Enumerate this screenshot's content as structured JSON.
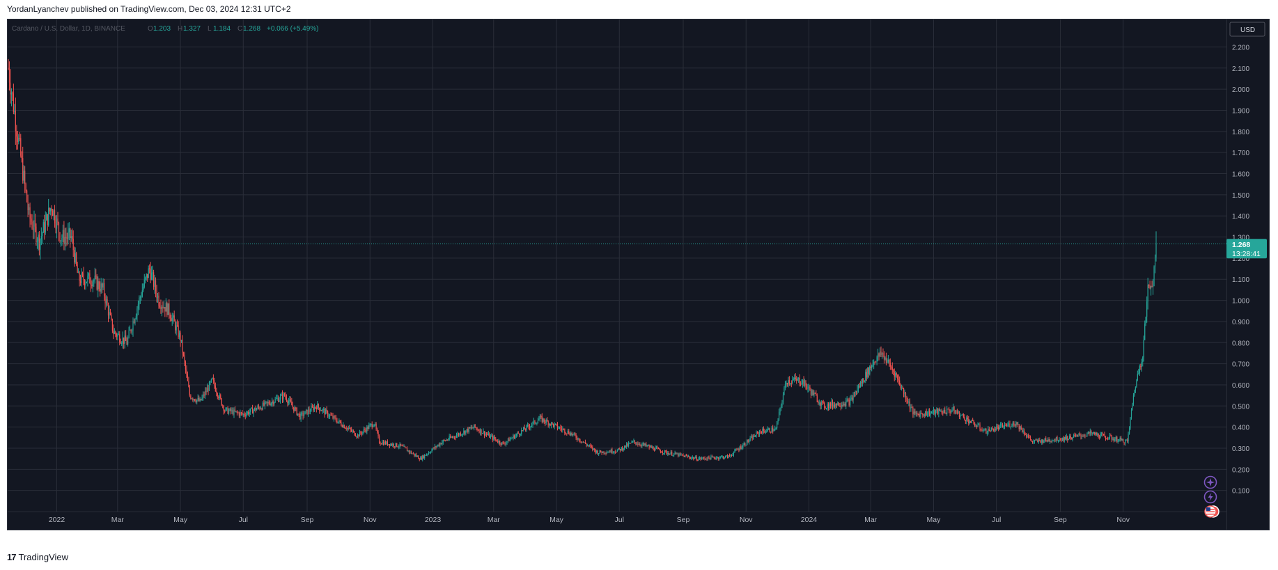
{
  "header": {
    "publish_text": "YordanLyanchev published on TradingView.com, Dec 03, 2024 12:31 UTC+2"
  },
  "legend": {
    "symbol": "Cardano / U.S. Dollar, 1D, BINANCE",
    "o_label": "O",
    "o_value": "1.203",
    "h_label": "H",
    "h_value": "1.327",
    "l_label": "L",
    "l_value": "1.184",
    "c_label": "C",
    "c_value": "1.268",
    "change": "+0.066 (+5.49%)"
  },
  "price_axis": {
    "currency": "USD",
    "last_price": "1.268",
    "countdown": "13:28:41"
  },
  "footer": {
    "brand": "TradingView",
    "logo_glyph": "17"
  },
  "icons": [
    "sparkle-icon",
    "lightning-icon",
    "us-flag-icon"
  ],
  "colors": {
    "up": "#26a69a",
    "down": "#ef5350",
    "background": "#131722",
    "grid": "#2a2e39",
    "text": "#b2b5be",
    "event": "#7e57c2"
  },
  "chart_data": {
    "type": "candlestick",
    "title": "Cardano / U.S. Dollar, 1D, BINANCE",
    "x_ticks": [
      "2022",
      "Mar",
      "May",
      "Jul",
      "Sep",
      "Nov",
      "2023",
      "Mar",
      "May",
      "Jul",
      "Sep",
      "Nov",
      "2024",
      "Mar",
      "May",
      "Jul",
      "Sep",
      "Nov"
    ],
    "y_ticks": [
      "2.200",
      "2.100",
      "2.000",
      "1.900",
      "1.800",
      "1.700",
      "1.600",
      "1.500",
      "1.400",
      "1.300",
      "1.200",
      "1.100",
      "1.000",
      "0.900",
      "0.800",
      "0.700",
      "0.600",
      "0.500",
      "0.400",
      "0.300",
      "0.200",
      "0.100"
    ],
    "ylim": [
      0.0,
      2.33
    ],
    "grid": true,
    "last_close": 1.268,
    "close_path": [
      [
        "2021-11-15",
        2.1
      ],
      [
        "2021-11-25",
        1.75
      ],
      [
        "2021-12-05",
        1.4
      ],
      [
        "2021-12-15",
        1.28
      ],
      [
        "2021-12-27",
        1.45
      ],
      [
        "2022-01-05",
        1.3
      ],
      [
        "2022-01-15",
        1.3
      ],
      [
        "2022-01-22",
        1.1
      ],
      [
        "2022-02-05",
        1.1
      ],
      [
        "2022-02-15",
        1.05
      ],
      [
        "2022-02-25",
        0.85
      ],
      [
        "2022-03-10",
        0.8
      ],
      [
        "2022-03-25",
        1.05
      ],
      [
        "2022-04-01",
        1.15
      ],
      [
        "2022-04-10",
        1.0
      ],
      [
        "2022-04-20",
        0.95
      ],
      [
        "2022-05-01",
        0.82
      ],
      [
        "2022-05-10",
        0.55
      ],
      [
        "2022-05-20",
        0.52
      ],
      [
        "2022-06-01",
        0.62
      ],
      [
        "2022-06-13",
        0.48
      ],
      [
        "2022-07-01",
        0.46
      ],
      [
        "2022-07-20",
        0.5
      ],
      [
        "2022-08-10",
        0.55
      ],
      [
        "2022-08-25",
        0.45
      ],
      [
        "2022-09-10",
        0.5
      ],
      [
        "2022-09-30",
        0.43
      ],
      [
        "2022-10-20",
        0.36
      ],
      [
        "2022-11-05",
        0.42
      ],
      [
        "2022-11-10",
        0.33
      ],
      [
        "2022-12-01",
        0.31
      ],
      [
        "2022-12-20",
        0.25
      ],
      [
        "2023-01-10",
        0.33
      ],
      [
        "2023-02-10",
        0.4
      ],
      [
        "2023-03-10",
        0.32
      ],
      [
        "2023-04-15",
        0.44
      ],
      [
        "2023-05-15",
        0.37
      ],
      [
        "2023-06-10",
        0.28
      ],
      [
        "2023-06-30",
        0.29
      ],
      [
        "2023-07-15",
        0.33
      ],
      [
        "2023-08-15",
        0.28
      ],
      [
        "2023-09-15",
        0.25
      ],
      [
        "2023-10-15",
        0.26
      ],
      [
        "2023-11-15",
        0.38
      ],
      [
        "2023-11-30",
        0.39
      ],
      [
        "2023-12-10",
        0.62
      ],
      [
        "2023-12-25",
        0.62
      ],
      [
        "2024-01-15",
        0.5
      ],
      [
        "2024-02-10",
        0.52
      ],
      [
        "2024-03-05",
        0.72
      ],
      [
        "2024-03-12",
        0.75
      ],
      [
        "2024-03-25",
        0.65
      ],
      [
        "2024-04-12",
        0.46
      ],
      [
        "2024-05-20",
        0.48
      ],
      [
        "2024-06-20",
        0.38
      ],
      [
        "2024-07-20",
        0.42
      ],
      [
        "2024-08-05",
        0.33
      ],
      [
        "2024-09-10",
        0.35
      ],
      [
        "2024-10-01",
        0.37
      ],
      [
        "2024-11-05",
        0.33
      ],
      [
        "2024-11-12",
        0.58
      ],
      [
        "2024-11-20",
        0.75
      ],
      [
        "2024-11-25",
        1.05
      ],
      [
        "2024-11-30",
        1.1
      ],
      [
        "2024-12-03",
        1.268
      ]
    ]
  }
}
